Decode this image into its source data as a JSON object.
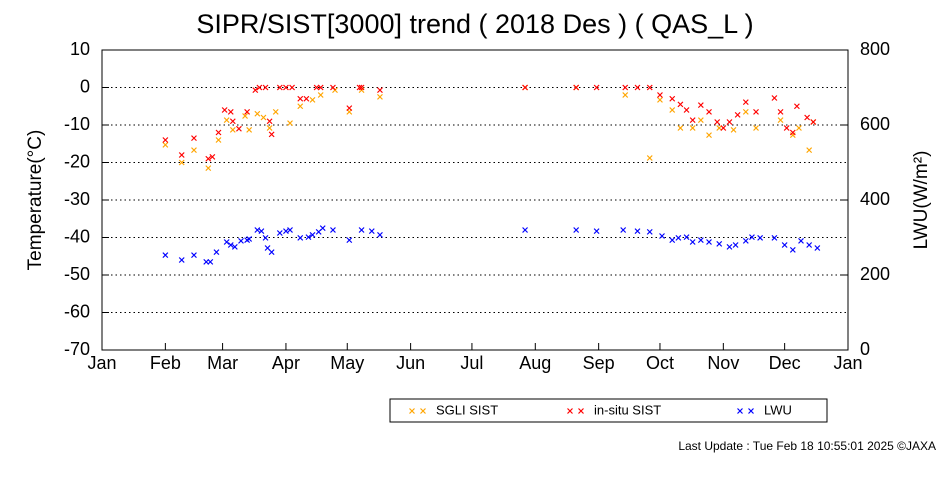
{
  "chart_data": {
    "type": "scatter",
    "title": "SIPR/SIST[3000] trend ( 2018 Des ) ( QAS_L )",
    "ylabel": "Temperature(°C)",
    "y2label": "LWU(W/m²)",
    "footer": "Last Update : Tue Feb 18 10:55:01 2025  ©JAXA",
    "xlim": [
      0,
      365
    ],
    "xticks": [
      {
        "value": 0,
        "label": "Jan"
      },
      {
        "value": 31,
        "label": "Feb"
      },
      {
        "value": 59,
        "label": "Mar"
      },
      {
        "value": 90,
        "label": "Apr"
      },
      {
        "value": 120,
        "label": "May"
      },
      {
        "value": 151,
        "label": "Jun"
      },
      {
        "value": 181,
        "label": "Jul"
      },
      {
        "value": 212,
        "label": "Aug"
      },
      {
        "value": 243,
        "label": "Sep"
      },
      {
        "value": 273,
        "label": "Oct"
      },
      {
        "value": 304,
        "label": "Nov"
      },
      {
        "value": 334,
        "label": "Dec"
      },
      {
        "value": 365,
        "label": "Jan"
      }
    ],
    "ylim": [
      -70,
      10
    ],
    "yticks": [
      -70,
      -60,
      -50,
      -40,
      -30,
      -20,
      -10,
      0,
      10
    ],
    "y2lim": [
      0,
      800
    ],
    "y2ticks": [
      0,
      200,
      400,
      600,
      800
    ],
    "grid": true,
    "series": [
      {
        "name": "SGLI SIST",
        "color": "#ffa500",
        "x": [
          31,
          39,
          45,
          52,
          57,
          61,
          64,
          70,
          72,
          76,
          79,
          82,
          85,
          92,
          97,
          103,
          107,
          114,
          121,
          127,
          136,
          207,
          232,
          256,
          268,
          273,
          279,
          283,
          289,
          293,
          297,
          302,
          309,
          315,
          320,
          332,
          338,
          341,
          346,
          348
        ],
        "values": [
          -15.3,
          -20,
          -16.7,
          -21.5,
          -14,
          -8.7,
          -11.3,
          -7.6,
          -11.3,
          -7,
          -8,
          -10.8,
          -6.5,
          -9.5,
          -5,
          -3.3,
          -2,
          -0.7,
          -6.5,
          -0.7,
          -2.5,
          0,
          0,
          -2,
          -18.8,
          -3.3,
          -6,
          -10.8,
          -10.8,
          -8.7,
          -12.7,
          -10.8,
          -11.3,
          -6.5,
          -10.8,
          -8.7,
          -12.7,
          -10.8,
          -16.7,
          -9.2
        ]
      },
      {
        "name": "in-situ SIST",
        "color": "#ff0000",
        "x": [
          31,
          39,
          45,
          52,
          54,
          57,
          60,
          63,
          64,
          67,
          71,
          75,
          77,
          80,
          82,
          83,
          87,
          90,
          93,
          97,
          100,
          105,
          107,
          113,
          121,
          126,
          127,
          136,
          207,
          232,
          242,
          256,
          262,
          268,
          273,
          279,
          283,
          286,
          289,
          293,
          297,
          301,
          304,
          307,
          311,
          315,
          320,
          329,
          332,
          335,
          338,
          340,
          345,
          348
        ],
        "values": [
          -14,
          -18,
          -13.5,
          -19,
          -18.5,
          -12,
          -6,
          -6.5,
          -9,
          -11,
          -6.5,
          -0.7,
          0,
          0,
          -9,
          -12.5,
          0,
          0,
          0,
          -3,
          -3,
          0,
          0,
          0,
          -5.5,
          0,
          0,
          -0.7,
          0,
          0,
          0,
          0,
          0,
          0,
          -2,
          -3,
          -4.5,
          -6,
          -8.7,
          -4.7,
          -6.5,
          -9.2,
          -10.8,
          -9.2,
          -7.3,
          -3.9,
          -6.5,
          -2.8,
          -6.5,
          -10.8,
          -12,
          -5,
          -8,
          -9.2
        ]
      },
      {
        "name": "LWU",
        "color": "#0000ff",
        "axis": "y2",
        "x": [
          31,
          39,
          45,
          51,
          53,
          56,
          61,
          63,
          65,
          68,
          71,
          72,
          76,
          78,
          80,
          81,
          83,
          87,
          90,
          92,
          97,
          101,
          103,
          106,
          108,
          113,
          121,
          127,
          132,
          136,
          207,
          232,
          242,
          255,
          262,
          268,
          274,
          279,
          282,
          286,
          289,
          293,
          297,
          302,
          307,
          310,
          315,
          318,
          322,
          329,
          334,
          338,
          342,
          346,
          350
        ],
        "values": [
          253,
          240,
          253,
          235,
          235,
          261,
          288,
          280,
          275,
          291,
          293,
          296,
          320,
          317,
          299,
          272,
          261,
          312,
          317,
          320,
          299,
          301,
          307,
          315,
          325,
          320,
          293,
          320,
          317,
          307,
          320,
          320,
          317,
          320,
          317,
          315,
          304,
          293,
          299,
          301,
          288,
          293,
          288,
          283,
          275,
          280,
          291,
          301,
          299,
          299,
          280,
          267,
          291,
          280,
          272
        ]
      }
    ]
  }
}
